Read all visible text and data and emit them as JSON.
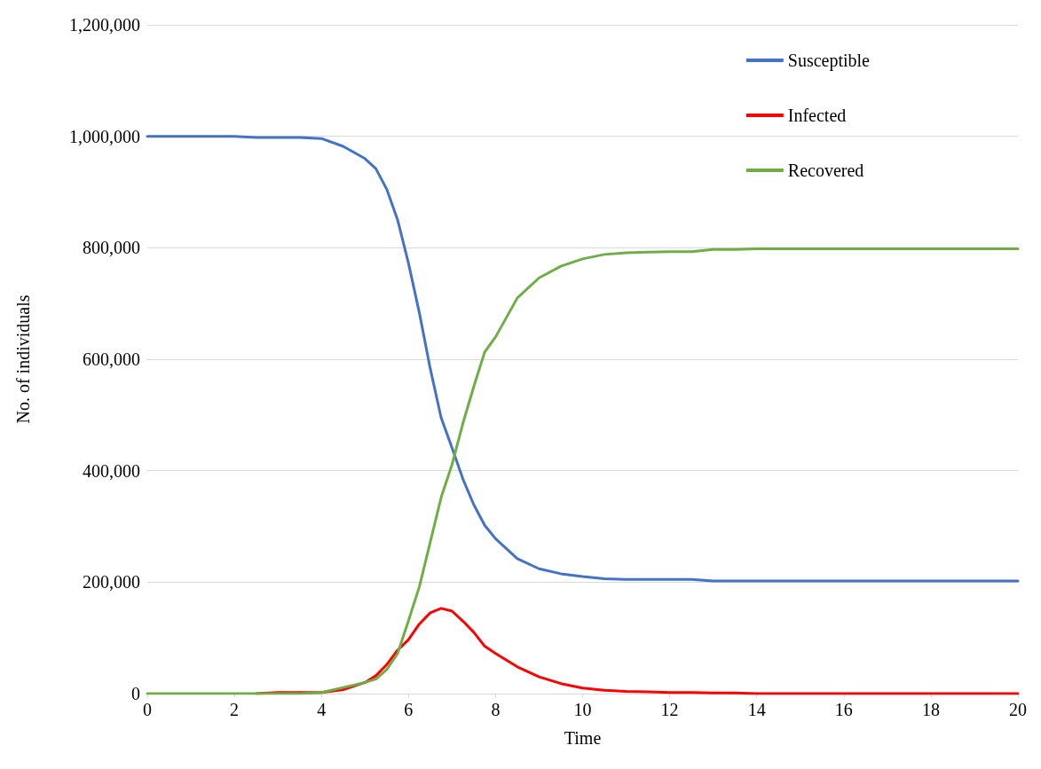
{
  "chart_data": {
    "type": "line",
    "xlabel": "Time",
    "ylabel": "No. of individuals",
    "x": [
      0,
      1,
      2,
      2.5,
      3,
      3.5,
      4,
      4.5,
      5,
      5.25,
      5.5,
      5.75,
      6,
      6.25,
      6.5,
      6.75,
      7,
      7.25,
      7.5,
      7.75,
      8,
      8.5,
      9,
      9.5,
      10,
      10.5,
      11,
      11.5,
      12,
      12.5,
      13,
      13.5,
      14,
      16,
      18,
      20
    ],
    "series": [
      {
        "name": "Susceptible",
        "color": "#4472c4",
        "values": [
          1000000,
          1000000,
          1000000,
          998000,
          998000,
          998000,
          996000,
          982000,
          960000,
          942000,
          905000,
          850000,
          772000,
          683000,
          583000,
          495000,
          441000,
          385000,
          339000,
          302000,
          278000,
          242000,
          224000,
          215000,
          210000,
          206000,
          205000,
          205000,
          205000,
          205000,
          202000,
          202000,
          202000,
          202000,
          202000,
          202000
        ]
      },
      {
        "name": "Infected",
        "color": "#ff0000",
        "values": [
          null,
          null,
          null,
          0,
          2000,
          2000,
          2000,
          7000,
          20000,
          32000,
          52000,
          78000,
          97000,
          125000,
          145000,
          153000,
          148000,
          130000,
          110000,
          85000,
          72000,
          48000,
          30000,
          18000,
          10000,
          6000,
          4000,
          3000,
          2000,
          2000,
          1000,
          1000,
          0,
          0,
          0,
          0
        ]
      },
      {
        "name": "Recovered",
        "color": "#70ad47",
        "values": [
          0,
          0,
          0,
          0,
          0,
          0,
          2000,
          11000,
          20000,
          26000,
          43000,
          72000,
          131000,
          192000,
          272000,
          352000,
          411000,
          485000,
          551000,
          613000,
          640000,
          710000,
          746000,
          767000,
          780000,
          788000,
          791000,
          792000,
          793000,
          793000,
          797000,
          797000,
          798000,
          798000,
          798000,
          798000
        ]
      }
    ],
    "xlim": [
      0,
      20
    ],
    "xticks": [
      0,
      2,
      4,
      6,
      8,
      10,
      12,
      14,
      16,
      18,
      20
    ],
    "ylim": [
      0,
      1200000
    ],
    "yticks": [
      0,
      {
        "value": 200000,
        "label": "200,000"
      },
      {
        "value": 400000,
        "label": "400,000"
      },
      {
        "value": 600000,
        "label": "600,000"
      },
      {
        "value": 800000,
        "label": "800,000"
      },
      {
        "value": 1000000,
        "label": "1,000,000"
      },
      {
        "value": 1200000,
        "label": "1,200,000"
      }
    ],
    "grid": "y",
    "legend": "top right",
    "marker": "none",
    "line_style": "solid"
  }
}
